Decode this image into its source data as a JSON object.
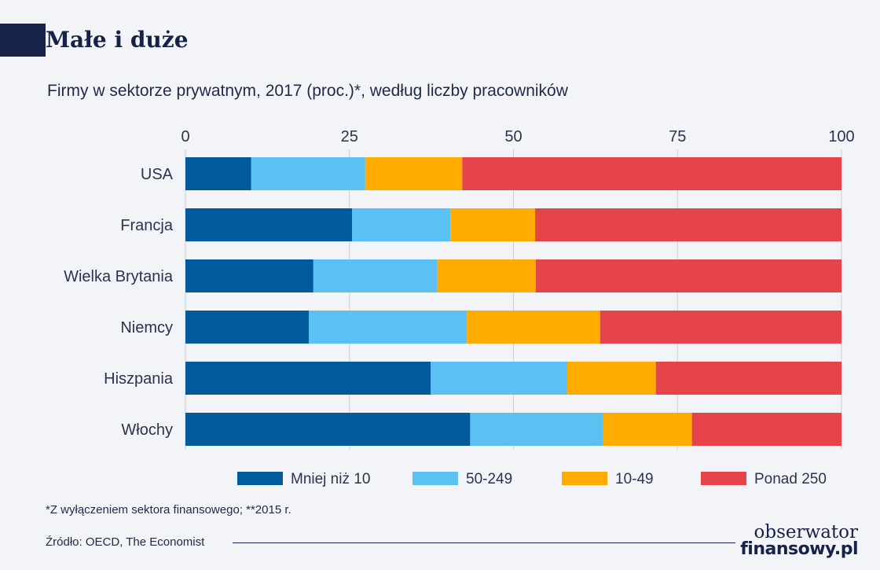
{
  "header": {
    "title": "Małe i duże",
    "subtitle": "Firmy w sektorze prywatnym, 2017 (proc.)*, według liczby pracowników"
  },
  "footer": {
    "footnote": "*Z wyłączeniem sektora finansowego;   **2015 r.",
    "source": "Źródło: OECD, The Economist",
    "logo_line1": "obserwator",
    "logo_line2": "finansowy.pl"
  },
  "chart_data": {
    "type": "bar",
    "orientation": "horizontal",
    "stacked": true,
    "categories": [
      "USA",
      "Francja",
      "Wielka Brytania",
      "Niemcy",
      "Hiszpania",
      "Włochy"
    ],
    "series": [
      {
        "name": "Mniej niż 10",
        "color": "#005a9c",
        "values": [
          10,
          25.4,
          19.5,
          18.8,
          37.4,
          43.4
        ]
      },
      {
        "name": "50-249",
        "color": "#5bc0f2",
        "values": [
          17.4,
          15,
          18.9,
          24.1,
          20.8,
          20.3
        ]
      },
      {
        "name": "10-49",
        "color": "#ffab00",
        "values": [
          14.8,
          12.9,
          15,
          20.3,
          13.5,
          13.5
        ]
      },
      {
        "name": "Ponad 250",
        "color": "#e5444b",
        "values": [
          57.8,
          46.7,
          46.6,
          36.8,
          28.3,
          22.8
        ]
      }
    ],
    "xlim": [
      0,
      100
    ],
    "xticks": [
      0,
      25,
      50,
      75,
      100
    ],
    "grid": true,
    "legend_position": "bottom"
  }
}
